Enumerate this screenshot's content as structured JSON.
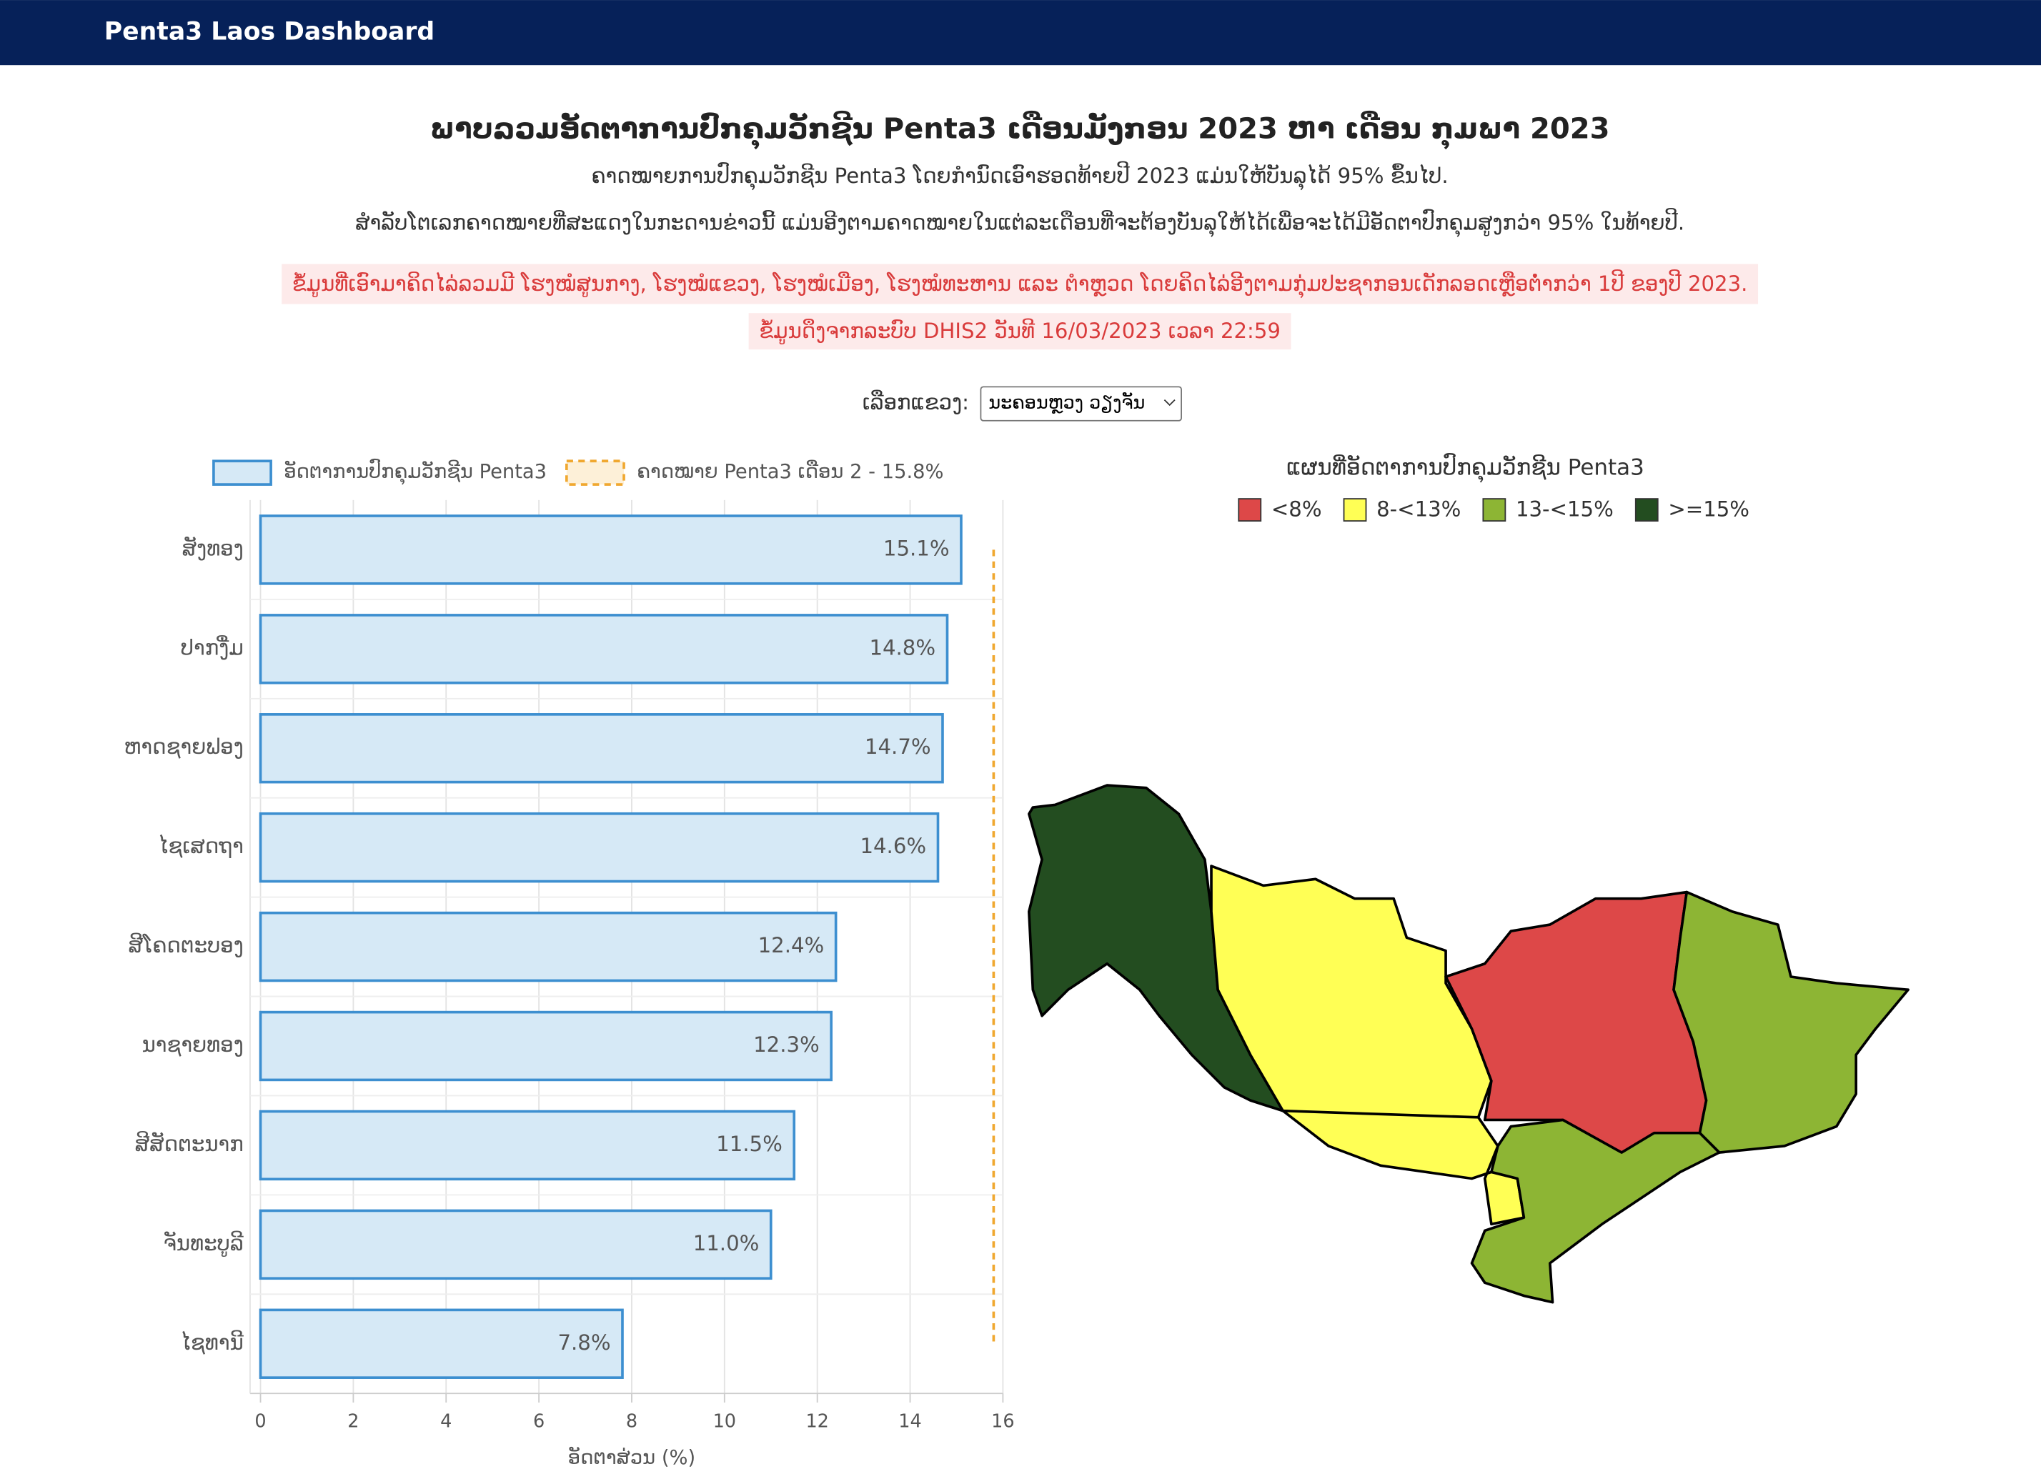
{
  "header": {
    "title": "Penta3 Laos Dashboard"
  },
  "page": {
    "title": "ພາບລວມອັດຕາການປົກຄຸມວັກຊີນ Penta3 ເດືອນມັງກອນ 2023 ຫາ ເດືອນ ກຸມພາ 2023",
    "subtitle_lines": [
      "ຄາດໝາຍການປົກຄຸມວັກຊີນ Penta3 ໂດຍກຳນົດເອົາຮອດທ້າຍປີ 2023 ແມ່ນໃຫ້ບັນລຸໄດ້ 95% ຂຶ້ນໄປ.",
      "ສຳລັບໂຕເລກຄາດໝາຍທີ່ສະແດງໃນກະດານຂ່າວນີ້ ແມ່ນອີງຕາມຄາດໝາຍໃນແຕ່ລະເດືອນທີ່ຈະຕ້ອງບັນລຸໃຫ້ໄດ້ເພື່ອຈະໄດ້ມີອັດຕາປົກຄຸມສູງກວ່າ 95% ໃນທ້າຍປີ."
    ],
    "notes": [
      "ຂໍ້ມູນທີ່ເອົາມາຄິດໄລ່ລວມມີ ໂຮງໝໍສູນກາງ, ໂຮງໝໍແຂວງ, ໂຮງໝໍເມືອງ, ໂຮງໝໍທະຫານ ແລະ ຕຳຫຼວດ ໂດຍຄິດໄລ່ອີງຕາມກຸ່ມປະຊາກອນເດັກລອດເຫຼືອຕໍ່າກວ່າ 1ປີ ຂອງປີ 2023.",
      "ຂໍ້ມູນດຶງຈາກລະບົບ DHIS2 ວັນທີ 16/03/2023 ເວລາ 22:59"
    ],
    "selector": {
      "label": "ເລືອກແຂວງ:",
      "value": "ນະຄອນຫຼວງ ວຽງຈັນ"
    }
  },
  "chart_data": {
    "type": "bar",
    "orientation": "horizontal",
    "categories": [
      "ສັງທອງ",
      "ປາກງື່ມ",
      "ຫາດຊາຍຟອງ",
      "ໄຊເສດຖາ",
      "ສີໂຄດຕະບອງ",
      "ນາຊາຍທອງ",
      "ສີສັດຕະນາກ",
      "ຈັນທະບູລີ",
      "ໄຊທານີ"
    ],
    "series": [
      {
        "name": "ອັດຕາການປົກຄຸມວັກຊີນ Penta3",
        "color": "#3d8fd0",
        "values": [
          15.1,
          14.8,
          14.7,
          14.6,
          12.4,
          12.3,
          11.5,
          11.0,
          7.8
        ],
        "value_labels": [
          "15.1%",
          "14.8%",
          "14.7%",
          "14.6%",
          "12.4%",
          "12.3%",
          "11.5%",
          "11.0%",
          "7.8%"
        ]
      }
    ],
    "target": {
      "name": "ຄາດໝາຍ Penta3 ເດືອນ 2 - 15.8%",
      "value": 15.8,
      "color": "#f0a830"
    },
    "xlabel": "ອັດຕາສ່ວນ (%)",
    "xlim": [
      0,
      16
    ],
    "xticks": [
      0,
      2,
      4,
      6,
      8,
      10,
      12,
      14,
      16
    ],
    "grid": true
  },
  "map": {
    "title": "ແຜນທີ່ອັດຕາການປົກຄຸມວັກຊີນ Penta3",
    "legend": [
      {
        "label": "<8%",
        "color": "#dd4848"
      },
      {
        "label": "8-<13%",
        "color": "#ffff55"
      },
      {
        "label": "13-<15%",
        "color": "#8db534"
      },
      {
        "label": ">=15%",
        "color": "#234d20"
      }
    ]
  }
}
